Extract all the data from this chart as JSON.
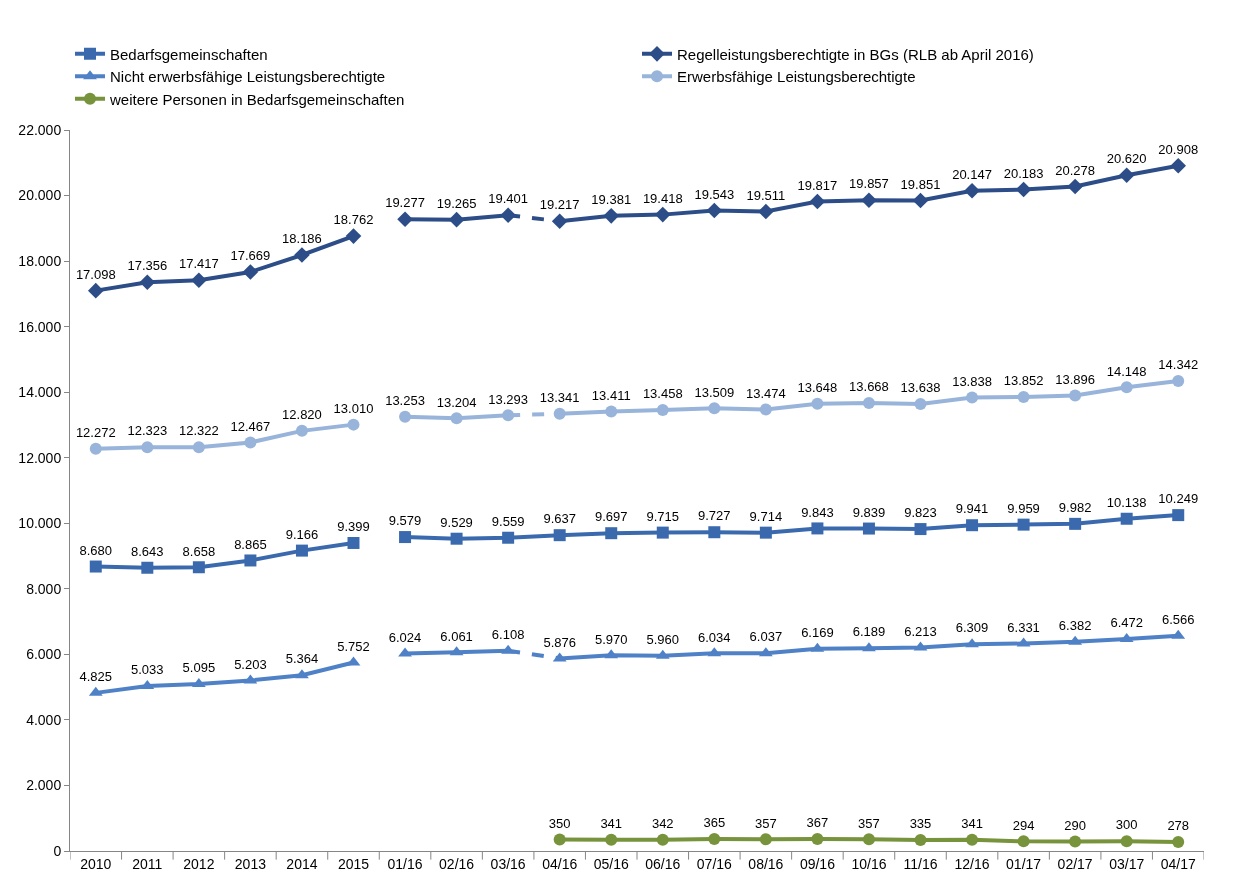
{
  "chart_data": {
    "type": "line",
    "categories": [
      "2010",
      "2011",
      "2012",
      "2013",
      "2014",
      "2015",
      "01/16",
      "02/16",
      "03/16",
      "04/16",
      "05/16",
      "06/16",
      "07/16",
      "08/16",
      "09/16",
      "10/16",
      "11/16",
      "12/16",
      "01/17",
      "02/17",
      "03/17",
      "04/17"
    ],
    "ylim": [
      0,
      22000
    ],
    "yticks": [
      {
        "value": 0,
        "label": "0"
      },
      {
        "value": 2000,
        "label": "2.000"
      },
      {
        "value": 4000,
        "label": "4.000"
      },
      {
        "value": 6000,
        "label": "6.000"
      },
      {
        "value": 8000,
        "label": "8.000"
      },
      {
        "value": 10000,
        "label": "10.000"
      },
      {
        "value": 12000,
        "label": "12.000"
      },
      {
        "value": 14000,
        "label": "14.000"
      },
      {
        "value": 16000,
        "label": "16.000"
      },
      {
        "value": 18000,
        "label": "18.000"
      },
      {
        "value": 20000,
        "label": "20.000"
      },
      {
        "value": 22000,
        "label": "22.000"
      }
    ],
    "grid": false,
    "legend": "top",
    "series": [
      {
        "name": "Bedarfsgemeinschaften",
        "color": "#3a6aad",
        "marker": "square",
        "values": [
          8680,
          8643,
          8658,
          8865,
          9166,
          9399,
          null,
          null,
          null,
          null,
          null,
          null,
          null,
          null,
          null,
          null,
          null,
          null,
          null,
          null,
          null,
          null
        ],
        "value_labels": [
          "8.680",
          "8.643",
          "8.658",
          "8.865",
          "9.166",
          "9.399",
          null,
          null,
          null,
          null,
          null,
          null,
          null,
          null,
          null,
          null,
          null,
          null,
          null,
          null,
          null,
          null
        ]
      },
      {
        "name": "Regelleistungsberechtigte in BGs (RLB ab April 2016)",
        "color": "#2c4d87",
        "marker": "diamond",
        "values": [
          17098,
          17356,
          17417,
          17669,
          18186,
          18762,
          null,
          null,
          null,
          null,
          null,
          null,
          null,
          null,
          null,
          null,
          null,
          null,
          null,
          null,
          null,
          null
        ],
        "value_labels": [
          "17.098",
          "17.356",
          "17.417",
          "17.669",
          "18.186",
          "18.762",
          null,
          null,
          null,
          null,
          null,
          null,
          null,
          null,
          null,
          null,
          null,
          null,
          null,
          null,
          null,
          null
        ]
      },
      {
        "name": "Nicht erwerbsfähige Leistungsberechtigte",
        "color": "#4f81c7",
        "marker": "triangle",
        "values": [
          4825,
          5033,
          5095,
          5203,
          5364,
          5752,
          null,
          null,
          null,
          null,
          null,
          null,
          null,
          null,
          null,
          null,
          null,
          null,
          null,
          null,
          null,
          null
        ],
        "value_labels": [
          "4.825",
          "5.033",
          "5.095",
          "5.203",
          "5.364",
          "5.752",
          null,
          null,
          null,
          null,
          null,
          null,
          null,
          null,
          null,
          null,
          null,
          null,
          null,
          null,
          null,
          null
        ]
      },
      {
        "name": "Erwerbsfähige Leistungsberechtigte",
        "color": "#98b4da",
        "marker": "circle",
        "values": [
          12272,
          12323,
          12322,
          12467,
          12820,
          13010,
          null,
          null,
          null,
          null,
          null,
          null,
          null,
          null,
          null,
          null,
          null,
          null,
          null,
          null,
          null,
          null
        ],
        "value_labels": [
          "12.272",
          "12.323",
          "12.322",
          "12.467",
          "12.820",
          "13.010",
          null,
          null,
          null,
          null,
          null,
          null,
          null,
          null,
          null,
          null,
          null,
          null,
          null,
          null,
          null,
          null
        ]
      },
      {
        "name": "weitere Personen in Bedarfsgemeinschaften",
        "color": "#77933c",
        "marker": "circle",
        "values": [
          null,
          null,
          null,
          null,
          null,
          null,
          null,
          null,
          null,
          350,
          341,
          342,
          365,
          357,
          367,
          357,
          335,
          341,
          294,
          290,
          300,
          278
        ],
        "value_labels": [
          null,
          null,
          null,
          null,
          null,
          null,
          null,
          null,
          null,
          "350",
          "341",
          "342",
          "365",
          "357",
          "367",
          "357",
          "335",
          "341",
          "294",
          "290",
          "300",
          "278"
        ]
      },
      {
        "color": "#3a6aad",
        "marker": "square",
        "values": [
          null,
          null,
          null,
          null,
          null,
          null,
          9579,
          9529,
          9559,
          9637,
          9697,
          9715,
          9727,
          9714,
          9843,
          9839,
          9823,
          9941,
          9959,
          9982,
          10138,
          10249
        ],
        "value_labels": [
          null,
          null,
          null,
          null,
          null,
          null,
          "9.579",
          "9.529",
          "9.559",
          "9.637",
          "9.697",
          "9.715",
          "9.727",
          "9.714",
          "9.843",
          "9.839",
          "9.823",
          "9.941",
          "9.959",
          "9.982",
          "10.138",
          "10.249"
        ]
      },
      {
        "color": "#2c4d87",
        "marker": "diamond",
        "values": [
          null,
          null,
          null,
          null,
          null,
          null,
          19277,
          19265,
          19401,
          null,
          null,
          null,
          null,
          null,
          null,
          null,
          null,
          null,
          null,
          null,
          null,
          null
        ],
        "value_labels": [
          null,
          null,
          null,
          null,
          null,
          null,
          "19.277",
          "19.265",
          "19.401",
          null,
          null,
          null,
          null,
          null,
          null,
          null,
          null,
          null,
          null,
          null,
          null,
          null
        ]
      },
      {
        "color": "#2c4d87",
        "line_style": "dashed",
        "values": [
          null,
          null,
          null,
          null,
          null,
          null,
          null,
          null,
          19401,
          19217,
          null,
          null,
          null,
          null,
          null,
          null,
          null,
          null,
          null,
          null,
          null,
          null
        ]
      },
      {
        "color": "#2c4d87",
        "marker": "diamond",
        "values": [
          null,
          null,
          null,
          null,
          null,
          null,
          null,
          null,
          null,
          19217,
          19381,
          19418,
          19543,
          19511,
          19817,
          19857,
          19851,
          20147,
          20183,
          20278,
          20620,
          20908
        ],
        "value_labels": [
          null,
          null,
          null,
          null,
          null,
          null,
          null,
          null,
          null,
          "19.217",
          "19.381",
          "19.418",
          "19.543",
          "19.511",
          "19.817",
          "19.857",
          "19.851",
          "20.147",
          "20.183",
          "20.278",
          "20.620",
          "20.908"
        ]
      },
      {
        "color": "#4f81c7",
        "marker": "triangle",
        "values": [
          null,
          null,
          null,
          null,
          null,
          null,
          6024,
          6061,
          6108,
          null,
          null,
          null,
          null,
          null,
          null,
          null,
          null,
          null,
          null,
          null,
          null,
          null
        ],
        "value_labels": [
          null,
          null,
          null,
          null,
          null,
          null,
          "6.024",
          "6.061",
          "6.108",
          null,
          null,
          null,
          null,
          null,
          null,
          null,
          null,
          null,
          null,
          null,
          null,
          null
        ]
      },
      {
        "color": "#4f81c7",
        "line_style": "dashed",
        "values": [
          null,
          null,
          null,
          null,
          null,
          null,
          null,
          null,
          6108,
          5876,
          null,
          null,
          null,
          null,
          null,
          null,
          null,
          null,
          null,
          null,
          null,
          null
        ]
      },
      {
        "color": "#4f81c7",
        "marker": "triangle",
        "values": [
          null,
          null,
          null,
          null,
          null,
          null,
          null,
          null,
          null,
          5876,
          5970,
          5960,
          6034,
          6037,
          6169,
          6189,
          6213,
          6309,
          6331,
          6382,
          6472,
          6566
        ],
        "value_labels": [
          null,
          null,
          null,
          null,
          null,
          null,
          null,
          null,
          null,
          "5.876",
          "5.970",
          "5.960",
          "6.034",
          "6.037",
          "6.169",
          "6.189",
          "6.213",
          "6.309",
          "6.331",
          "6.382",
          "6.472",
          "6.566"
        ]
      },
      {
        "color": "#98b4da",
        "marker": "circle",
        "values": [
          null,
          null,
          null,
          null,
          null,
          null,
          13253,
          13204,
          13293,
          null,
          null,
          null,
          null,
          null,
          null,
          null,
          null,
          null,
          null,
          null,
          null,
          null
        ],
        "value_labels": [
          null,
          null,
          null,
          null,
          null,
          null,
          "13.253",
          "13.204",
          "13.293",
          null,
          null,
          null,
          null,
          null,
          null,
          null,
          null,
          null,
          null,
          null,
          null,
          null
        ]
      },
      {
        "color": "#98b4da",
        "line_style": "dashed",
        "values": [
          null,
          null,
          null,
          null,
          null,
          null,
          null,
          null,
          13293,
          13341,
          null,
          null,
          null,
          null,
          null,
          null,
          null,
          null,
          null,
          null,
          null,
          null
        ]
      },
      {
        "color": "#98b4da",
        "marker": "circle",
        "values": [
          null,
          null,
          null,
          null,
          null,
          null,
          null,
          null,
          null,
          13341,
          13411,
          13458,
          13509,
          13474,
          13648,
          13668,
          13638,
          13838,
          13852,
          13896,
          14148,
          14342
        ],
        "value_labels": [
          null,
          null,
          null,
          null,
          null,
          null,
          null,
          null,
          null,
          "13.341",
          "13.411",
          "13.458",
          "13.509",
          "13.474",
          "13.648",
          "13.668",
          "13.638",
          "13.838",
          "13.852",
          "13.896",
          "14.148",
          "14.342"
        ]
      }
    ]
  }
}
